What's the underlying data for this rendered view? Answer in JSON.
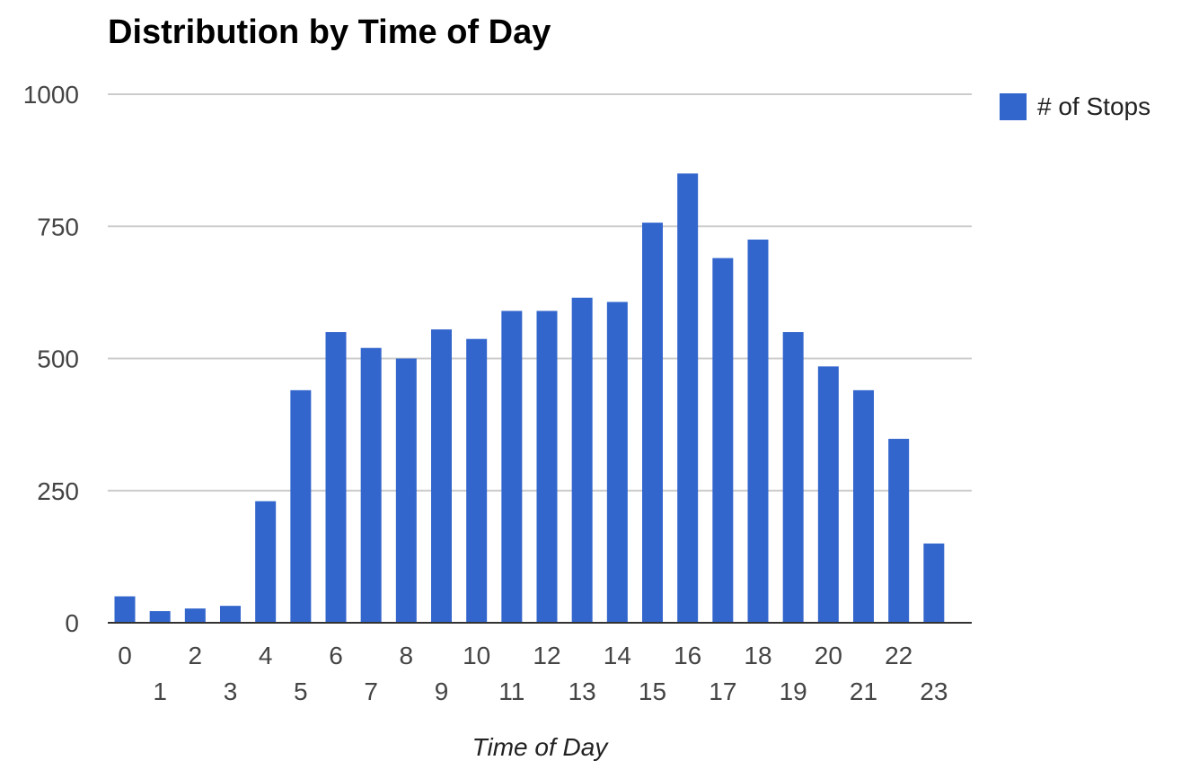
{
  "chart_data": {
    "type": "bar",
    "title": "Distribution by Time of Day",
    "xlabel": "Time of Day",
    "ylabel": "",
    "ylim": [
      0,
      1000
    ],
    "yticks": [
      0,
      250,
      500,
      750,
      1000
    ],
    "grid": true,
    "legend_position": "right",
    "categories": [
      "0",
      "1",
      "2",
      "3",
      "4",
      "5",
      "6",
      "7",
      "8",
      "9",
      "10",
      "11",
      "12",
      "13",
      "14",
      "15",
      "16",
      "17",
      "18",
      "19",
      "20",
      "21",
      "22",
      "23"
    ],
    "series": [
      {
        "name": "# of Stops",
        "color": "#3366cc",
        "values": [
          50,
          22,
          27,
          32,
          230,
          440,
          550,
          520,
          500,
          555,
          537,
          590,
          590,
          615,
          607,
          757,
          850,
          690,
          725,
          550,
          485,
          440,
          348,
          150
        ]
      }
    ]
  }
}
